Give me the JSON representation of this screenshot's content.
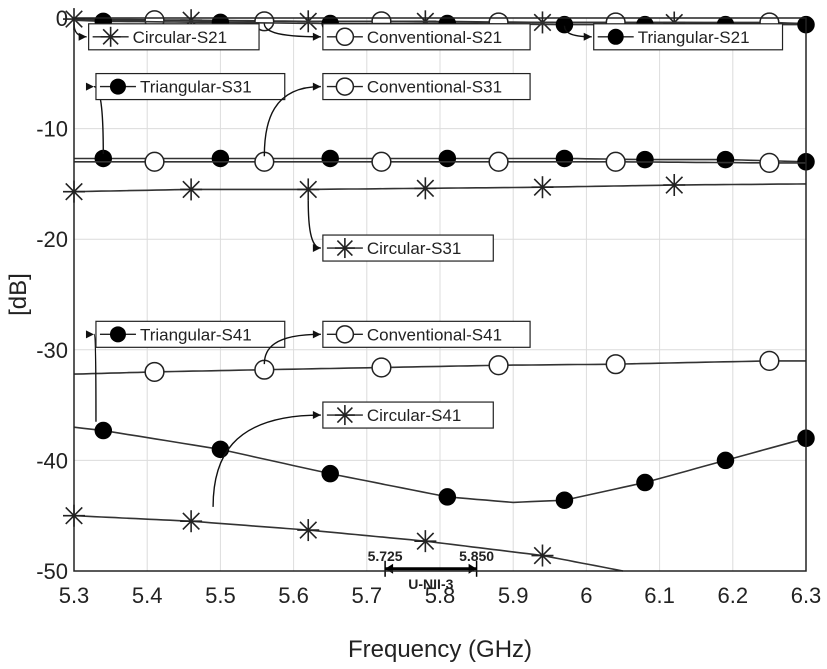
{
  "chart_data": {
    "type": "line",
    "xlabel": "Frequency (GHz)",
    "ylabel": "[dB]",
    "xlim": [
      5.3,
      6.3
    ],
    "ylim": [
      -50,
      0
    ],
    "xticks": [
      "5.3",
      "5.4",
      "5.5",
      "5.6",
      "5.7",
      "5.8",
      "5.9",
      "6",
      "6.1",
      "6.2",
      "6.3"
    ],
    "yticks": [
      "0",
      "-10",
      "-20",
      "-30",
      "-40",
      "-50"
    ],
    "grid": true,
    "series": [
      {
        "name": "Circular-S21",
        "marker": "asterisk",
        "x": [
          5.3,
          5.46,
          5.62,
          5.78,
          5.94,
          6.1,
          6.3
        ],
        "y": [
          -0.1,
          -0.2,
          -0.3,
          -0.3,
          -0.4,
          -0.4,
          -0.5
        ],
        "marker_x": [
          5.3,
          5.46,
          5.62,
          5.78,
          5.94,
          6.12
        ]
      },
      {
        "name": "Conventional-S21",
        "marker": "open-circle",
        "x": [
          5.3,
          5.41,
          5.56,
          5.72,
          5.88,
          6.04,
          6.25,
          6.3
        ],
        "y": [
          -0.2,
          -0.2,
          -0.3,
          -0.3,
          -0.4,
          -0.4,
          -0.4,
          -0.5
        ],
        "marker_x": [
          5.41,
          5.56,
          5.72,
          5.88,
          6.04,
          6.25
        ]
      },
      {
        "name": "Triangular-S21",
        "marker": "filled-circle",
        "x": [
          5.3,
          5.34,
          5.5,
          5.65,
          5.81,
          5.97,
          6.08,
          6.19,
          6.3
        ],
        "y": [
          -0.2,
          -0.3,
          -0.4,
          -0.5,
          -0.5,
          -0.6,
          -0.6,
          -0.6,
          -0.6
        ],
        "marker_x": [
          5.34,
          5.5,
          5.65,
          5.81,
          5.97,
          6.08,
          6.19,
          6.3
        ]
      },
      {
        "name": "Triangular-S31",
        "marker": "filled-circle",
        "x": [
          5.3,
          5.34,
          5.5,
          5.65,
          5.81,
          5.97,
          6.08,
          6.19,
          6.3
        ],
        "y": [
          -12.7,
          -12.7,
          -12.7,
          -12.7,
          -12.7,
          -12.7,
          -12.8,
          -12.8,
          -13.0
        ],
        "marker_x": [
          5.34,
          5.5,
          5.65,
          5.81,
          5.97,
          6.08,
          6.19,
          6.3
        ]
      },
      {
        "name": "Conventional-S31",
        "marker": "open-circle",
        "x": [
          5.3,
          5.41,
          5.56,
          5.72,
          5.88,
          6.04,
          6.25,
          6.3
        ],
        "y": [
          -13.0,
          -13.0,
          -13.0,
          -13.0,
          -13.0,
          -13.0,
          -13.1,
          -13.1
        ],
        "marker_x": [
          5.41,
          5.56,
          5.72,
          5.88,
          6.04,
          6.25
        ]
      },
      {
        "name": "Circular-S31",
        "marker": "asterisk",
        "x": [
          5.3,
          5.46,
          5.62,
          5.78,
          5.94,
          6.12,
          6.3
        ],
        "y": [
          -15.7,
          -15.5,
          -15.5,
          -15.4,
          -15.3,
          -15.1,
          -15.0
        ],
        "marker_x": [
          5.3,
          5.46,
          5.62,
          5.78,
          5.94,
          6.12
        ]
      },
      {
        "name": "Triangular-S41",
        "marker": "filled-circle",
        "x": [
          5.3,
          5.34,
          5.5,
          5.65,
          5.81,
          5.9,
          5.97,
          6.08,
          6.19,
          6.3
        ],
        "y": [
          -37.0,
          -37.3,
          -39.0,
          -41.2,
          -43.3,
          -43.8,
          -43.6,
          -42.0,
          -40.0,
          -38.0
        ],
        "marker_x": [
          5.34,
          5.5,
          5.65,
          5.81,
          5.97,
          6.08,
          6.19,
          6.3
        ]
      },
      {
        "name": "Conventional-S41",
        "marker": "open-circle",
        "x": [
          5.3,
          5.41,
          5.56,
          5.72,
          5.88,
          6.04,
          6.25,
          6.3
        ],
        "y": [
          -32.2,
          -32.0,
          -31.8,
          -31.6,
          -31.4,
          -31.3,
          -31.0,
          -31.0
        ],
        "marker_x": [
          5.41,
          5.56,
          5.72,
          5.88,
          6.04,
          6.25
        ]
      },
      {
        "name": "Circular-S41",
        "marker": "asterisk",
        "x": [
          5.3,
          5.46,
          5.62,
          5.78,
          5.94,
          6.05
        ],
        "y": [
          -45.0,
          -45.5,
          -46.3,
          -47.3,
          -48.6,
          -50.0
        ],
        "marker_x": [
          5.3,
          5.46,
          5.62,
          5.78,
          5.94
        ]
      }
    ],
    "band": {
      "label": "U-NII-3",
      "start": 5.725,
      "end": 5.85,
      "start_label": "5.725",
      "end_label": "5.850"
    },
    "legends": [
      {
        "series": "Circular-S21",
        "text": "Circular-S21",
        "marker": "asterisk",
        "anchor": {
          "x": 5.3,
          "y": -0.5
        },
        "box": {
          "x": 5.32,
          "y": -1.7
        }
      },
      {
        "series": "Conventional-S21",
        "text": "Conventional-S21",
        "marker": "open-circle",
        "anchor": {
          "x": 5.56,
          "y": -0.5
        },
        "box": {
          "x": 5.64,
          "y": -1.7
        }
      },
      {
        "series": "Triangular-S21",
        "marker": "filled-circle",
        "text": "Triangular-S21",
        "anchor": {
          "x": 5.97,
          "y": -0.7
        },
        "box": {
          "x": 6.01,
          "y": -1.7
        }
      },
      {
        "series": "Triangular-S31",
        "marker": "filled-circle",
        "text": "Triangular-S31",
        "anchor": {
          "x": 5.34,
          "y": -12.3
        },
        "box": {
          "x": 5.33,
          "y": -6.2
        }
      },
      {
        "series": "Conventional-S31",
        "marker": "open-circle",
        "text": "Conventional-S31",
        "anchor": {
          "x": 5.56,
          "y": -12.5
        },
        "box": {
          "x": 5.64,
          "y": -6.2
        }
      },
      {
        "series": "Circular-S31",
        "marker": "asterisk",
        "text": "Circular-S31",
        "anchor": {
          "x": 5.62,
          "y": -16.5
        },
        "box": {
          "x": 5.64,
          "y": -20.8
        }
      },
      {
        "series": "Triangular-S41",
        "marker": "filled-circle",
        "text": "Triangular-S41",
        "anchor": {
          "x": 5.33,
          "y": -36.5
        },
        "box": {
          "x": 5.33,
          "y": -28.6
        }
      },
      {
        "series": "Conventional-S41",
        "marker": "open-circle",
        "text": "Conventional-S41",
        "anchor": {
          "x": 5.56,
          "y": -31.3
        },
        "box": {
          "x": 5.64,
          "y": -28.6
        }
      },
      {
        "series": "Circular-S41",
        "marker": "asterisk",
        "text": "Circular-S41",
        "anchor": {
          "x": 5.49,
          "y": -44.2
        },
        "box": {
          "x": 5.64,
          "y": -35.9
        }
      }
    ]
  }
}
